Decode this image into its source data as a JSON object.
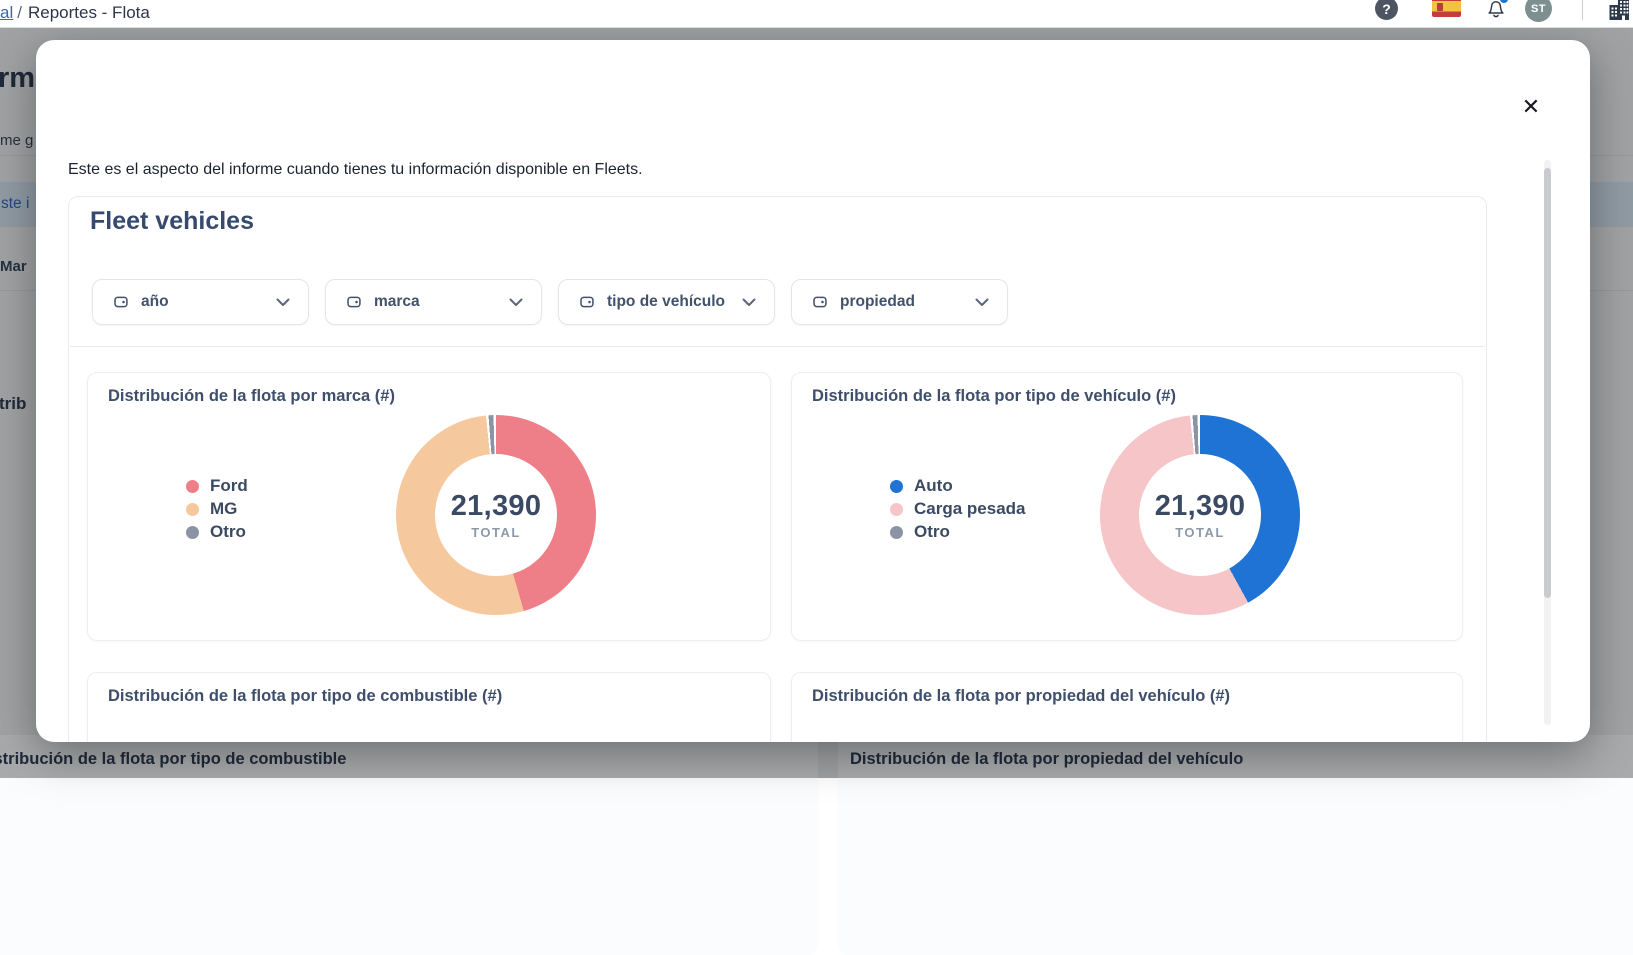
{
  "topbar": {
    "breadcrumb": {
      "link_fragment": "al",
      "separator": "/",
      "current": "Reportes - Flota"
    },
    "help_glyph": "?",
    "avatar_initials": "ST"
  },
  "background_page": {
    "fragments": {
      "page_heading": "rm",
      "subtitle": "me g",
      "selected_row_link": "ste i",
      "table_header": "Mar",
      "section_title": "trib"
    },
    "bottom_section_titles": {
      "left": "Distribución de la flota por tipo de combustible",
      "right": "Distribución de la flota por propiedad del vehículo"
    }
  },
  "modal": {
    "close_glyph": "✕",
    "intro": "Este es el aspecto del informe cuando tienes tu información disponible en Fleets.",
    "report": {
      "title": "Fleet vehicles",
      "filters": [
        {
          "label": "año"
        },
        {
          "label": "marca"
        },
        {
          "label": "tipo de vehículo"
        },
        {
          "label": "propiedad"
        }
      ]
    }
  },
  "chart_data": [
    {
      "type": "pie",
      "variant": "donut",
      "title": "Distribución de la flota por marca (#)",
      "total": 21390,
      "center_value": "21,390",
      "center_label": "TOTAL",
      "legend_position": "left",
      "segments": [
        {
          "label": "Ford",
          "value_pct": 45.5,
          "color": "#ee7f88",
          "gap_after_pct": 0
        },
        {
          "label": "MG",
          "value_pct": 52.9,
          "color": "#f6c89e",
          "gap_after_pct": 0.4
        },
        {
          "label": "Otro",
          "value_pct": 0.8,
          "color": "#8b93a5",
          "gap_after_pct": 0.4
        }
      ]
    },
    {
      "type": "pie",
      "variant": "donut",
      "title": "Distribución de la flota por tipo de vehículo (#)",
      "total": 21390,
      "center_value": "21,390",
      "center_label": "TOTAL",
      "legend_position": "left",
      "segments": [
        {
          "label": "Auto",
          "value_pct": 42.0,
          "color": "#1e73d4",
          "gap_after_pct": 0
        },
        {
          "label": "Carga pesada",
          "value_pct": 56.4,
          "color": "#f6c5c8",
          "gap_after_pct": 0.4
        },
        {
          "label": "Otro",
          "value_pct": 0.8,
          "color": "#8b93a5",
          "gap_after_pct": 0.4
        }
      ]
    },
    {
      "type": "pie",
      "variant": "donut",
      "title": "Distribución de la flota por tipo de combustible (#)",
      "partially_visible": true
    },
    {
      "type": "pie",
      "variant": "donut",
      "title": "Distribución de la flota por propiedad del vehículo (#)",
      "partially_visible": true
    }
  ]
}
